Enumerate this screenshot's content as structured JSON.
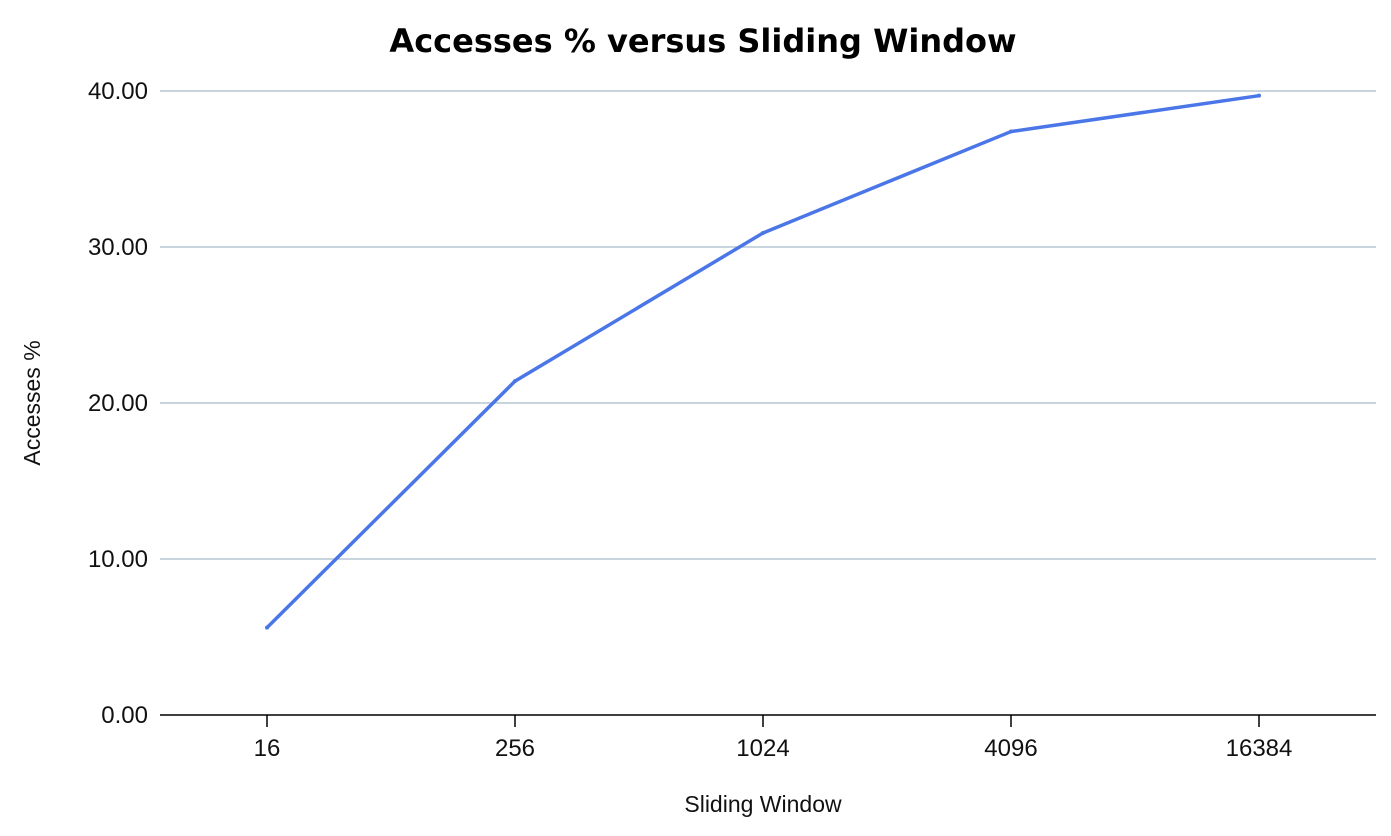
{
  "chart_data": {
    "type": "line",
    "title": "Accesses % versus Sliding Window",
    "xlabel": "Sliding Window",
    "ylabel": "Accesses %",
    "categories": [
      "16",
      "256",
      "1024",
      "4096",
      "16384"
    ],
    "series": [
      {
        "values": [
          5.6,
          21.4,
          30.9,
          37.4,
          39.7
        ]
      }
    ],
    "ylim": [
      0,
      40
    ],
    "yticks": [
      "0.00",
      "10.00",
      "20.00",
      "30.00",
      "40.00"
    ],
    "grid": true,
    "legend": "none",
    "colors": {
      "line": "#4a76e8",
      "grid": "#a9bccb",
      "axis": "#000000"
    }
  }
}
